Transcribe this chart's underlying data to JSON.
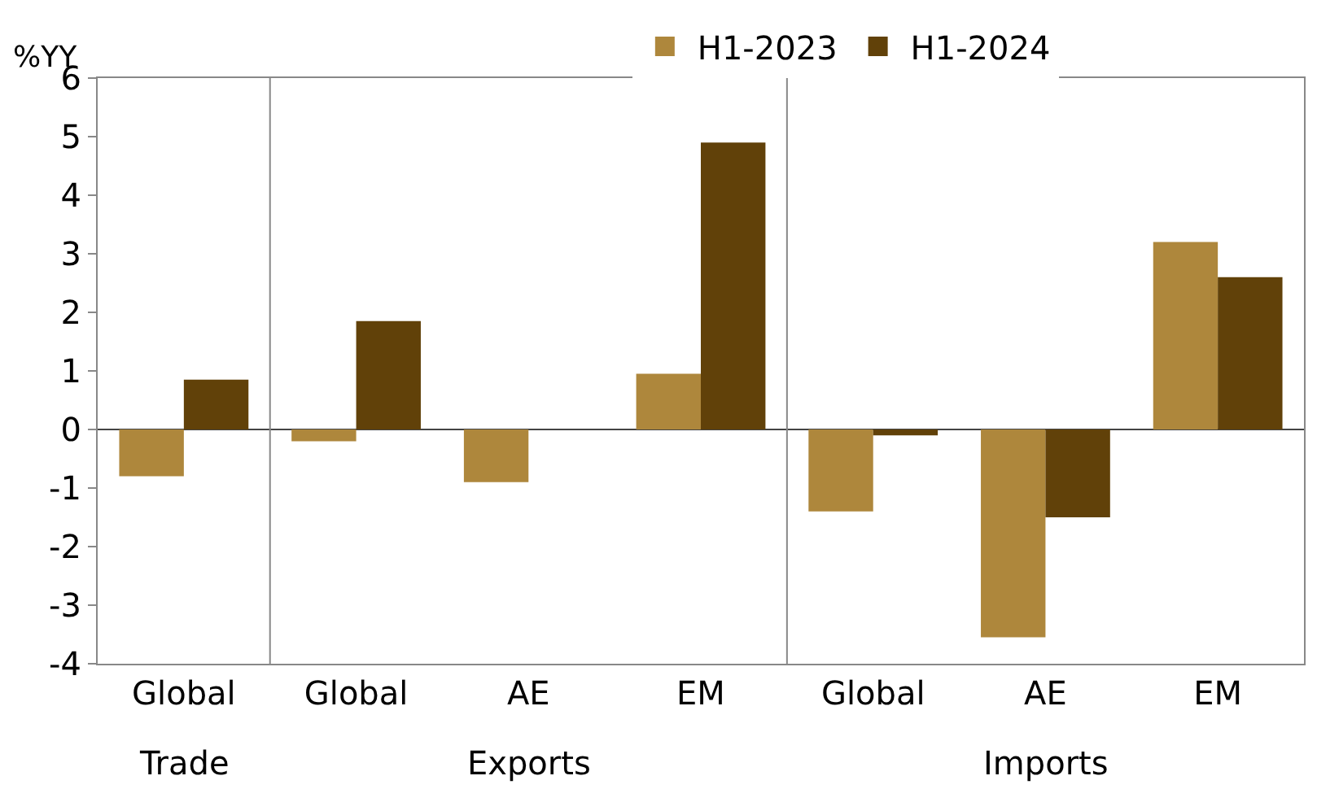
{
  "chart_data": {
    "type": "bar",
    "categories": [
      "Global",
      "Global",
      "AE",
      "EM",
      "Global",
      "AE",
      "EM"
    ],
    "series": [
      {
        "name": "H1-2023",
        "color": "#ae873c",
        "values": [
          -0.8,
          -0.2,
          -0.9,
          0.95,
          -1.4,
          -3.55,
          3.2
        ]
      },
      {
        "name": "H1-2024",
        "color": "#614109",
        "values": [
          0.85,
          1.85,
          0,
          4.9,
          -0.1,
          -1.5,
          2.6
        ]
      }
    ],
    "ylabel": "%YY",
    "annotations": [
      "Trade",
      "Exports",
      "Imports"
    ],
    "ylim": [
      -4,
      6
    ],
    "yticks": [
      -4,
      -3,
      -2,
      -1,
      0,
      1,
      2,
      3,
      4,
      5,
      6
    ],
    "legend": "top"
  }
}
